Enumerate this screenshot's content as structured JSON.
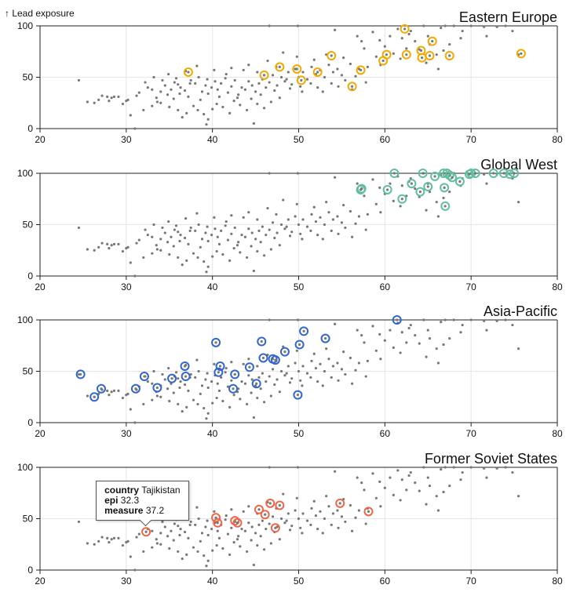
{
  "y_axis_label": "↑ Lead exposure",
  "chart_data": {
    "type": "scatter",
    "xlim": [
      20,
      80
    ],
    "ylim": [
      0,
      100
    ],
    "x_ticks": [
      20,
      30,
      40,
      50,
      60,
      70,
      80
    ],
    "y_ticks": [
      0,
      50,
      100
    ],
    "grid": true,
    "background_color": "#777777",
    "background_points": [
      [
        24.5,
        47
      ],
      [
        25.5,
        26
      ],
      [
        26.3,
        25
      ],
      [
        27.2,
        32
      ],
      [
        27.8,
        31
      ],
      [
        28.3,
        30
      ],
      [
        29.1,
        31
      ],
      [
        30,
        27
      ],
      [
        30.2,
        28
      ],
      [
        31.2,
        32
      ],
      [
        31.5,
        35
      ],
      [
        32.2,
        45
      ],
      [
        32.5,
        40
      ],
      [
        33,
        38
      ],
      [
        33.5,
        30
      ],
      [
        34,
        36
      ],
      [
        34.5,
        42
      ],
      [
        34.8,
        33
      ],
      [
        35.2,
        38
      ],
      [
        35.6,
        45
      ],
      [
        36,
        43
      ],
      [
        36.3,
        40
      ],
      [
        36.8,
        37
      ],
      [
        37.2,
        31
      ],
      [
        37.5,
        47
      ],
      [
        38,
        44
      ],
      [
        38.4,
        50
      ],
      [
        38.8,
        36
      ],
      [
        39.2,
        42
      ],
      [
        39.5,
        34
      ],
      [
        39.9,
        40
      ],
      [
        40.3,
        46
      ],
      [
        40.6,
        38
      ],
      [
        41,
        44
      ],
      [
        41.5,
        49
      ],
      [
        41.8,
        35
      ],
      [
        42.2,
        41
      ],
      [
        42.6,
        47
      ],
      [
        43,
        33
      ],
      [
        43.4,
        40
      ],
      [
        43.8,
        38
      ],
      [
        44.2,
        46
      ],
      [
        44.6,
        42
      ],
      [
        45,
        36
      ],
      [
        45.4,
        44
      ],
      [
        45.8,
        48
      ],
      [
        46.2,
        40
      ],
      [
        46.6,
        45
      ],
      [
        47,
        52
      ],
      [
        47.5,
        42
      ],
      [
        48,
        50
      ],
      [
        48.4,
        46
      ],
      [
        48.8,
        55
      ],
      [
        49.2,
        43
      ],
      [
        49.6,
        58
      ],
      [
        50,
        50
      ],
      [
        50.5,
        55
      ],
      [
        51,
        48
      ],
      [
        51.5,
        60
      ],
      [
        52,
        53
      ],
      [
        52.5,
        57
      ],
      [
        53,
        50
      ],
      [
        53.5,
        62
      ],
      [
        54,
        55
      ],
      [
        54.5,
        58
      ],
      [
        55,
        52
      ],
      [
        56,
        63
      ],
      [
        57,
        58
      ],
      [
        57.3,
        85
      ],
      [
        58,
        60
      ],
      [
        59,
        70
      ],
      [
        59.5,
        62
      ],
      [
        60,
        80
      ],
      [
        61,
        73
      ],
      [
        61.5,
        97
      ],
      [
        62,
        88
      ],
      [
        62.5,
        78
      ],
      [
        63,
        95
      ],
      [
        63.5,
        85
      ],
      [
        64,
        77
      ],
      [
        64.5,
        100
      ],
      [
        65,
        90
      ],
      [
        66,
        72
      ],
      [
        66.5,
        98
      ],
      [
        67,
        100
      ],
      [
        67.5,
        82
      ],
      [
        68,
        100
      ],
      [
        69,
        95
      ],
      [
        70,
        100
      ],
      [
        71.5,
        99
      ],
      [
        73,
        99
      ],
      [
        74,
        100
      ],
      [
        75.5,
        72
      ],
      [
        28,
        27
      ],
      [
        30.5,
        13
      ],
      [
        31,
        0
      ],
      [
        32,
        18
      ],
      [
        33,
        22
      ],
      [
        34,
        25
      ],
      [
        35,
        21
      ],
      [
        36,
        18
      ],
      [
        36.5,
        11
      ],
      [
        37,
        15
      ],
      [
        37.8,
        22
      ],
      [
        38.3,
        18
      ],
      [
        39,
        14
      ],
      [
        39.5,
        9
      ],
      [
        40,
        19
      ],
      [
        40.5,
        24
      ],
      [
        41.2,
        21
      ],
      [
        42,
        15
      ],
      [
        42.5,
        27
      ],
      [
        43.2,
        23
      ],
      [
        44,
        18
      ],
      [
        44.5,
        29
      ],
      [
        45.2,
        24
      ],
      [
        46,
        20
      ],
      [
        46.8,
        26
      ],
      [
        47.8,
        30
      ],
      [
        44.8,
        5
      ],
      [
        39.3,
        4
      ],
      [
        33.6,
        26
      ],
      [
        35.5,
        29
      ],
      [
        36.2,
        34
      ],
      [
        38.6,
        28
      ],
      [
        40.8,
        31
      ],
      [
        42.9,
        30
      ],
      [
        45.6,
        33
      ],
      [
        47.2,
        37
      ],
      [
        49,
        39
      ],
      [
        50.4,
        36
      ],
      [
        52.2,
        40
      ],
      [
        53.8,
        44
      ],
      [
        55.4,
        47
      ],
      [
        56.6,
        51
      ],
      [
        48.2,
        74
      ],
      [
        49.8,
        70
      ],
      [
        51.8,
        67
      ],
      [
        53.2,
        72
      ],
      [
        55.2,
        69
      ],
      [
        46.4,
        66
      ],
      [
        44.2,
        62
      ],
      [
        42.2,
        59
      ],
      [
        40.2,
        57
      ],
      [
        38.2,
        61
      ],
      [
        36.9,
        56
      ],
      [
        34.9,
        53
      ],
      [
        33.2,
        50
      ],
      [
        46.6,
        100
      ],
      [
        49.9,
        100
      ],
      [
        54.2,
        96
      ],
      [
        56.8,
        90
      ],
      [
        58.6,
        94
      ],
      [
        60.6,
        90
      ],
      [
        62.8,
        92
      ],
      [
        65.2,
        82
      ],
      [
        66.8,
        76
      ],
      [
        68.8,
        88
      ],
      [
        71.8,
        90
      ],
      [
        74.8,
        95
      ],
      [
        57.6,
        78
      ],
      [
        59.4,
        86
      ],
      [
        61.8,
        68
      ],
      [
        64.8,
        64
      ],
      [
        66.2,
        58
      ],
      [
        43.6,
        57
      ],
      [
        45.2,
        55
      ],
      [
        47.4,
        60
      ],
      [
        41.6,
        53
      ],
      [
        39.4,
        48
      ],
      [
        37.4,
        44
      ],
      [
        35.8,
        49
      ],
      [
        34.2,
        47
      ],
      [
        29.6,
        24
      ],
      [
        28.6,
        31
      ],
      [
        26.8,
        28
      ],
      [
        48.6,
        48
      ],
      [
        50.2,
        41
      ],
      [
        51.4,
        44
      ],
      [
        52.8,
        36
      ],
      [
        54.6,
        41
      ],
      [
        56.2,
        38
      ],
      [
        57.8,
        45
      ]
    ],
    "panels": [
      {
        "title": "Eastern Europe",
        "color": "#f2a900",
        "points": [
          [
            37.2,
            55
          ],
          [
            46,
            52
          ],
          [
            47.8,
            60
          ],
          [
            49.8,
            58
          ],
          [
            50.3,
            47
          ],
          [
            52.2,
            55
          ],
          [
            53.8,
            71
          ],
          [
            56.2,
            41
          ],
          [
            57.2,
            57
          ],
          [
            59.8,
            66
          ],
          [
            60.2,
            72
          ],
          [
            62.3,
            97
          ],
          [
            62.5,
            72
          ],
          [
            64.2,
            76
          ],
          [
            64.3,
            69
          ],
          [
            65.2,
            71
          ],
          [
            65.5,
            85
          ],
          [
            67.5,
            71
          ],
          [
            75.8,
            73
          ]
        ]
      },
      {
        "title": "Global West",
        "color": "#5fbf9f",
        "points": [
          [
            57.2,
            84
          ],
          [
            57.3,
            85
          ],
          [
            60.3,
            84
          ],
          [
            61.1,
            100
          ],
          [
            62,
            75
          ],
          [
            63.1,
            90
          ],
          [
            64.1,
            82
          ],
          [
            64.4,
            100
          ],
          [
            65,
            87
          ],
          [
            65.8,
            97
          ],
          [
            66.8,
            100
          ],
          [
            66.9,
            86
          ],
          [
            67,
            68
          ],
          [
            67.2,
            100
          ],
          [
            67.5,
            98
          ],
          [
            67.8,
            96
          ],
          [
            68.7,
            92
          ],
          [
            69.8,
            99
          ],
          [
            70,
            100
          ],
          [
            70.5,
            100
          ],
          [
            72.6,
            100
          ],
          [
            73.8,
            100
          ],
          [
            74.5,
            99
          ],
          [
            75,
            100
          ]
        ]
      },
      {
        "title": "Asia-Pacific",
        "color": "#3366cc",
        "points": [
          [
            24.7,
            47
          ],
          [
            26.3,
            25
          ],
          [
            27.1,
            33
          ],
          [
            31.1,
            33
          ],
          [
            32.1,
            45
          ],
          [
            33.6,
            34
          ],
          [
            35.3,
            43
          ],
          [
            36.8,
            55
          ],
          [
            36.9,
            45
          ],
          [
            40.4,
            78
          ],
          [
            40.7,
            49
          ],
          [
            40.9,
            55
          ],
          [
            42.4,
            33
          ],
          [
            42.6,
            47
          ],
          [
            44.3,
            54
          ],
          [
            45.1,
            38
          ],
          [
            45.7,
            79
          ],
          [
            45.9,
            63
          ],
          [
            47,
            62
          ],
          [
            47.3,
            61
          ],
          [
            48.4,
            69
          ],
          [
            49.9,
            27
          ],
          [
            50.1,
            76
          ],
          [
            50.6,
            89
          ],
          [
            53.1,
            82
          ],
          [
            61.4,
            100
          ]
        ]
      },
      {
        "title": "Former Soviet States",
        "color": "#ef6548",
        "points": [
          [
            32.3,
            37.2
          ],
          [
            40.4,
            51
          ],
          [
            40.6,
            46
          ],
          [
            42.6,
            48
          ],
          [
            42.9,
            46
          ],
          [
            45.4,
            59
          ],
          [
            46.1,
            54
          ],
          [
            46.7,
            65
          ],
          [
            47.3,
            41
          ],
          [
            47.8,
            63
          ],
          [
            54.8,
            65
          ],
          [
            58.1,
            57
          ]
        ]
      }
    ],
    "tooltip": {
      "panel": "Former Soviet States",
      "country_label": "country",
      "country": "Tajikistan",
      "epi_label": "epi",
      "epi": "32.3",
      "measure_label": "measure",
      "measure": "37.2"
    }
  }
}
